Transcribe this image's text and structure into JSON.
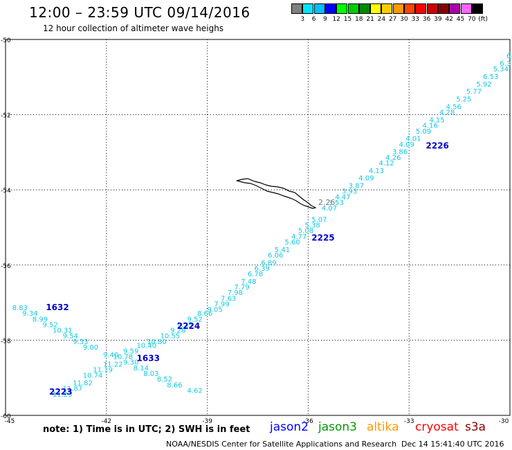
{
  "title": "12:00 – 23:59 UTC 09/14/2016",
  "subtitle": "12 hour collection of altimeter wave heighs",
  "legend": {
    "labels": [
      "",
      "3",
      "6",
      "9",
      "12",
      "15",
      "18",
      "21",
      "24",
      "27",
      "30",
      "33",
      "36",
      "39",
      "42",
      "45",
      "70",
      "(ft)"
    ],
    "colors": [
      "#808080",
      "#00e5ff",
      "#00bfff",
      "#0000ff",
      "#00ff00",
      "#00cc00",
      "#008800",
      "#ffff00",
      "#ffcc00",
      "#ff9900",
      "#ff4400",
      "#ff0000",
      "#cc0000",
      "#880000",
      "#aa00aa",
      "#ff66ff",
      "#000000"
    ]
  },
  "map": {
    "lon_ticks": [
      "-45",
      "-42",
      "-39",
      "-36",
      "-33",
      "-30"
    ],
    "lat_ticks": [
      "-50",
      "-52",
      "-54",
      "-56",
      "-58",
      "-60"
    ],
    "island_label": "2.26",
    "pass_labels": [
      {
        "text": "1632",
        "lon": -43.8,
        "lat": -57.2,
        "color": "#0000cc"
      },
      {
        "text": "1633",
        "lon": -41.1,
        "lat": -58.55,
        "color": "#0000cc"
      },
      {
        "text": "2223",
        "lon": -43.7,
        "lat": -59.45,
        "color": "#0000cc"
      },
      {
        "text": "2224",
        "lon": -39.9,
        "lat": -57.7,
        "color": "#0000cc"
      },
      {
        "text": "2225",
        "lon": -35.9,
        "lat": -55.35,
        "color": "#0000cc"
      },
      {
        "text": "2226",
        "lon": -32.5,
        "lat": -52.9,
        "color": "#0000cc"
      }
    ],
    "wave_values": [
      {
        "text": "6.5",
        "lon": -30.1,
        "lat": -50.5
      },
      {
        "text": "6.3",
        "lon": -30.3,
        "lat": -50.7
      },
      {
        "text": "5.34",
        "lon": -30.5,
        "lat": -50.85
      },
      {
        "text": "6.53",
        "lon": -30.8,
        "lat": -51.05
      },
      {
        "text": "5.92",
        "lon": -31.0,
        "lat": -51.25
      },
      {
        "text": "5.77",
        "lon": -31.3,
        "lat": -51.45
      },
      {
        "text": "5.25",
        "lon": -31.6,
        "lat": -51.65
      },
      {
        "text": "4.56",
        "lon": -31.9,
        "lat": -51.85
      },
      {
        "text": "4.28",
        "lon": -32.1,
        "lat": -52.0
      },
      {
        "text": "4.15",
        "lon": -32.4,
        "lat": -52.2
      },
      {
        "text": "4.16",
        "lon": -32.6,
        "lat": -52.35
      },
      {
        "text": "5.09",
        "lon": -32.8,
        "lat": -52.5
      },
      {
        "text": "4.01",
        "lon": -33.1,
        "lat": -52.7
      },
      {
        "text": "4.09",
        "lon": -33.3,
        "lat": -52.85
      },
      {
        "text": "3.86",
        "lon": -33.5,
        "lat": -53.05
      },
      {
        "text": "4.26",
        "lon": -33.7,
        "lat": -53.2
      },
      {
        "text": "4.12",
        "lon": -33.9,
        "lat": -53.35
      },
      {
        "text": "4.13",
        "lon": -34.2,
        "lat": -53.55
      },
      {
        "text": "4.09",
        "lon": -34.5,
        "lat": -53.75
      },
      {
        "text": "3.87",
        "lon": -34.8,
        "lat": -53.95
      },
      {
        "text": "3.93",
        "lon": -35.0,
        "lat": -54.1
      },
      {
        "text": "4.47",
        "lon": -35.2,
        "lat": -54.25
      },
      {
        "text": "3.53",
        "lon": -35.4,
        "lat": -54.4
      },
      {
        "text": "4.07",
        "lon": -35.6,
        "lat": -54.55
      },
      {
        "text": "5.07",
        "lon": -35.9,
        "lat": -54.85
      },
      {
        "text": "5.38",
        "lon": -36.1,
        "lat": -55.0
      },
      {
        "text": "5.08",
        "lon": -36.3,
        "lat": -55.15
      },
      {
        "text": "4.77",
        "lon": -36.5,
        "lat": -55.3
      },
      {
        "text": "5.60",
        "lon": -36.7,
        "lat": -55.45
      },
      {
        "text": "5.41",
        "lon": -37.0,
        "lat": -55.65
      },
      {
        "text": "6.06",
        "lon": -37.2,
        "lat": -55.8
      },
      {
        "text": "6.89",
        "lon": -37.4,
        "lat": -56.0
      },
      {
        "text": "6.39",
        "lon": -37.6,
        "lat": -56.15
      },
      {
        "text": "6.78",
        "lon": -37.8,
        "lat": -56.3
      },
      {
        "text": "7.48",
        "lon": -38.0,
        "lat": -56.5
      },
      {
        "text": "7.79",
        "lon": -38.2,
        "lat": -56.65
      },
      {
        "text": "7.98",
        "lon": -38.4,
        "lat": -56.8
      },
      {
        "text": "7.63",
        "lon": -38.6,
        "lat": -56.95
      },
      {
        "text": "7.99",
        "lon": -38.8,
        "lat": -57.1
      },
      {
        "text": "9.05",
        "lon": -39.0,
        "lat": -57.25
      },
      {
        "text": "8.66",
        "lon": -39.3,
        "lat": -57.35
      },
      {
        "text": "9.52",
        "lon": -39.6,
        "lat": -57.5
      },
      {
        "text": "9.25",
        "lon": -39.9,
        "lat": -57.65
      },
      {
        "text": "9.28",
        "lon": -40.1,
        "lat": -57.8
      },
      {
        "text": "10.55",
        "lon": -40.4,
        "lat": -57.95
      },
      {
        "text": "10.80",
        "lon": -40.8,
        "lat": -58.1
      },
      {
        "text": "10.40",
        "lon": -41.1,
        "lat": -58.2
      },
      {
        "text": "9.59",
        "lon": -41.5,
        "lat": -58.35
      },
      {
        "text": "10.78",
        "lon": -41.8,
        "lat": -58.5
      },
      {
        "text": "11.22",
        "lon": -42.1,
        "lat": -58.7
      },
      {
        "text": "11.19",
        "lon": -42.4,
        "lat": -58.85
      },
      {
        "text": "10.74",
        "lon": -42.7,
        "lat": -59.0
      },
      {
        "text": "11.82",
        "lon": -43.0,
        "lat": -59.2
      },
      {
        "text": "11.87",
        "lon": -43.3,
        "lat": -59.35
      },
      {
        "text": "11.23",
        "lon": -43.6,
        "lat": -59.5
      },
      {
        "text": "8.83",
        "lon": -44.8,
        "lat": -57.2
      },
      {
        "text": "9.34",
        "lon": -44.5,
        "lat": -57.35
      },
      {
        "text": "8.99",
        "lon": -44.2,
        "lat": -57.5
      },
      {
        "text": "9.52",
        "lon": -43.9,
        "lat": -57.65
      },
      {
        "text": "10.31",
        "lon": -43.6,
        "lat": -57.8
      },
      {
        "text": "9.54",
        "lon": -43.3,
        "lat": -57.95
      },
      {
        "text": "9.33",
        "lon": -43.0,
        "lat": -58.1
      },
      {
        "text": "9.00",
        "lon": -42.7,
        "lat": -58.25
      },
      {
        "text": "9.40",
        "lon": -42.1,
        "lat": -58.45
      },
      {
        "text": "9.30",
        "lon": -41.5,
        "lat": -58.65
      },
      {
        "text": "8.14",
        "lon": -41.2,
        "lat": -58.8
      },
      {
        "text": "8.03",
        "lon": -40.9,
        "lat": -58.95
      },
      {
        "text": "8.52",
        "lon": -40.5,
        "lat": -59.1
      },
      {
        "text": "8.66",
        "lon": -40.2,
        "lat": -59.25
      },
      {
        "text": "4.62",
        "lon": -39.6,
        "lat": -59.4
      }
    ]
  },
  "note": "note: 1) Time is in UTC; 2) SWH is in feet",
  "satellites": [
    {
      "name": "jason2",
      "color": "#0000ff"
    },
    {
      "name": "jason3",
      "color": "#009900"
    },
    {
      "name": "altika",
      "color": "#ff9900"
    },
    {
      "name": "cryosat",
      "color": "#ff0000"
    },
    {
      "name": "s3a",
      "color": "#880000"
    }
  ],
  "credit": "NOAA/NESDIS Center for Satellite Applications and Research",
  "stamp": "Dec 14 15:41:40 UTC 2016"
}
